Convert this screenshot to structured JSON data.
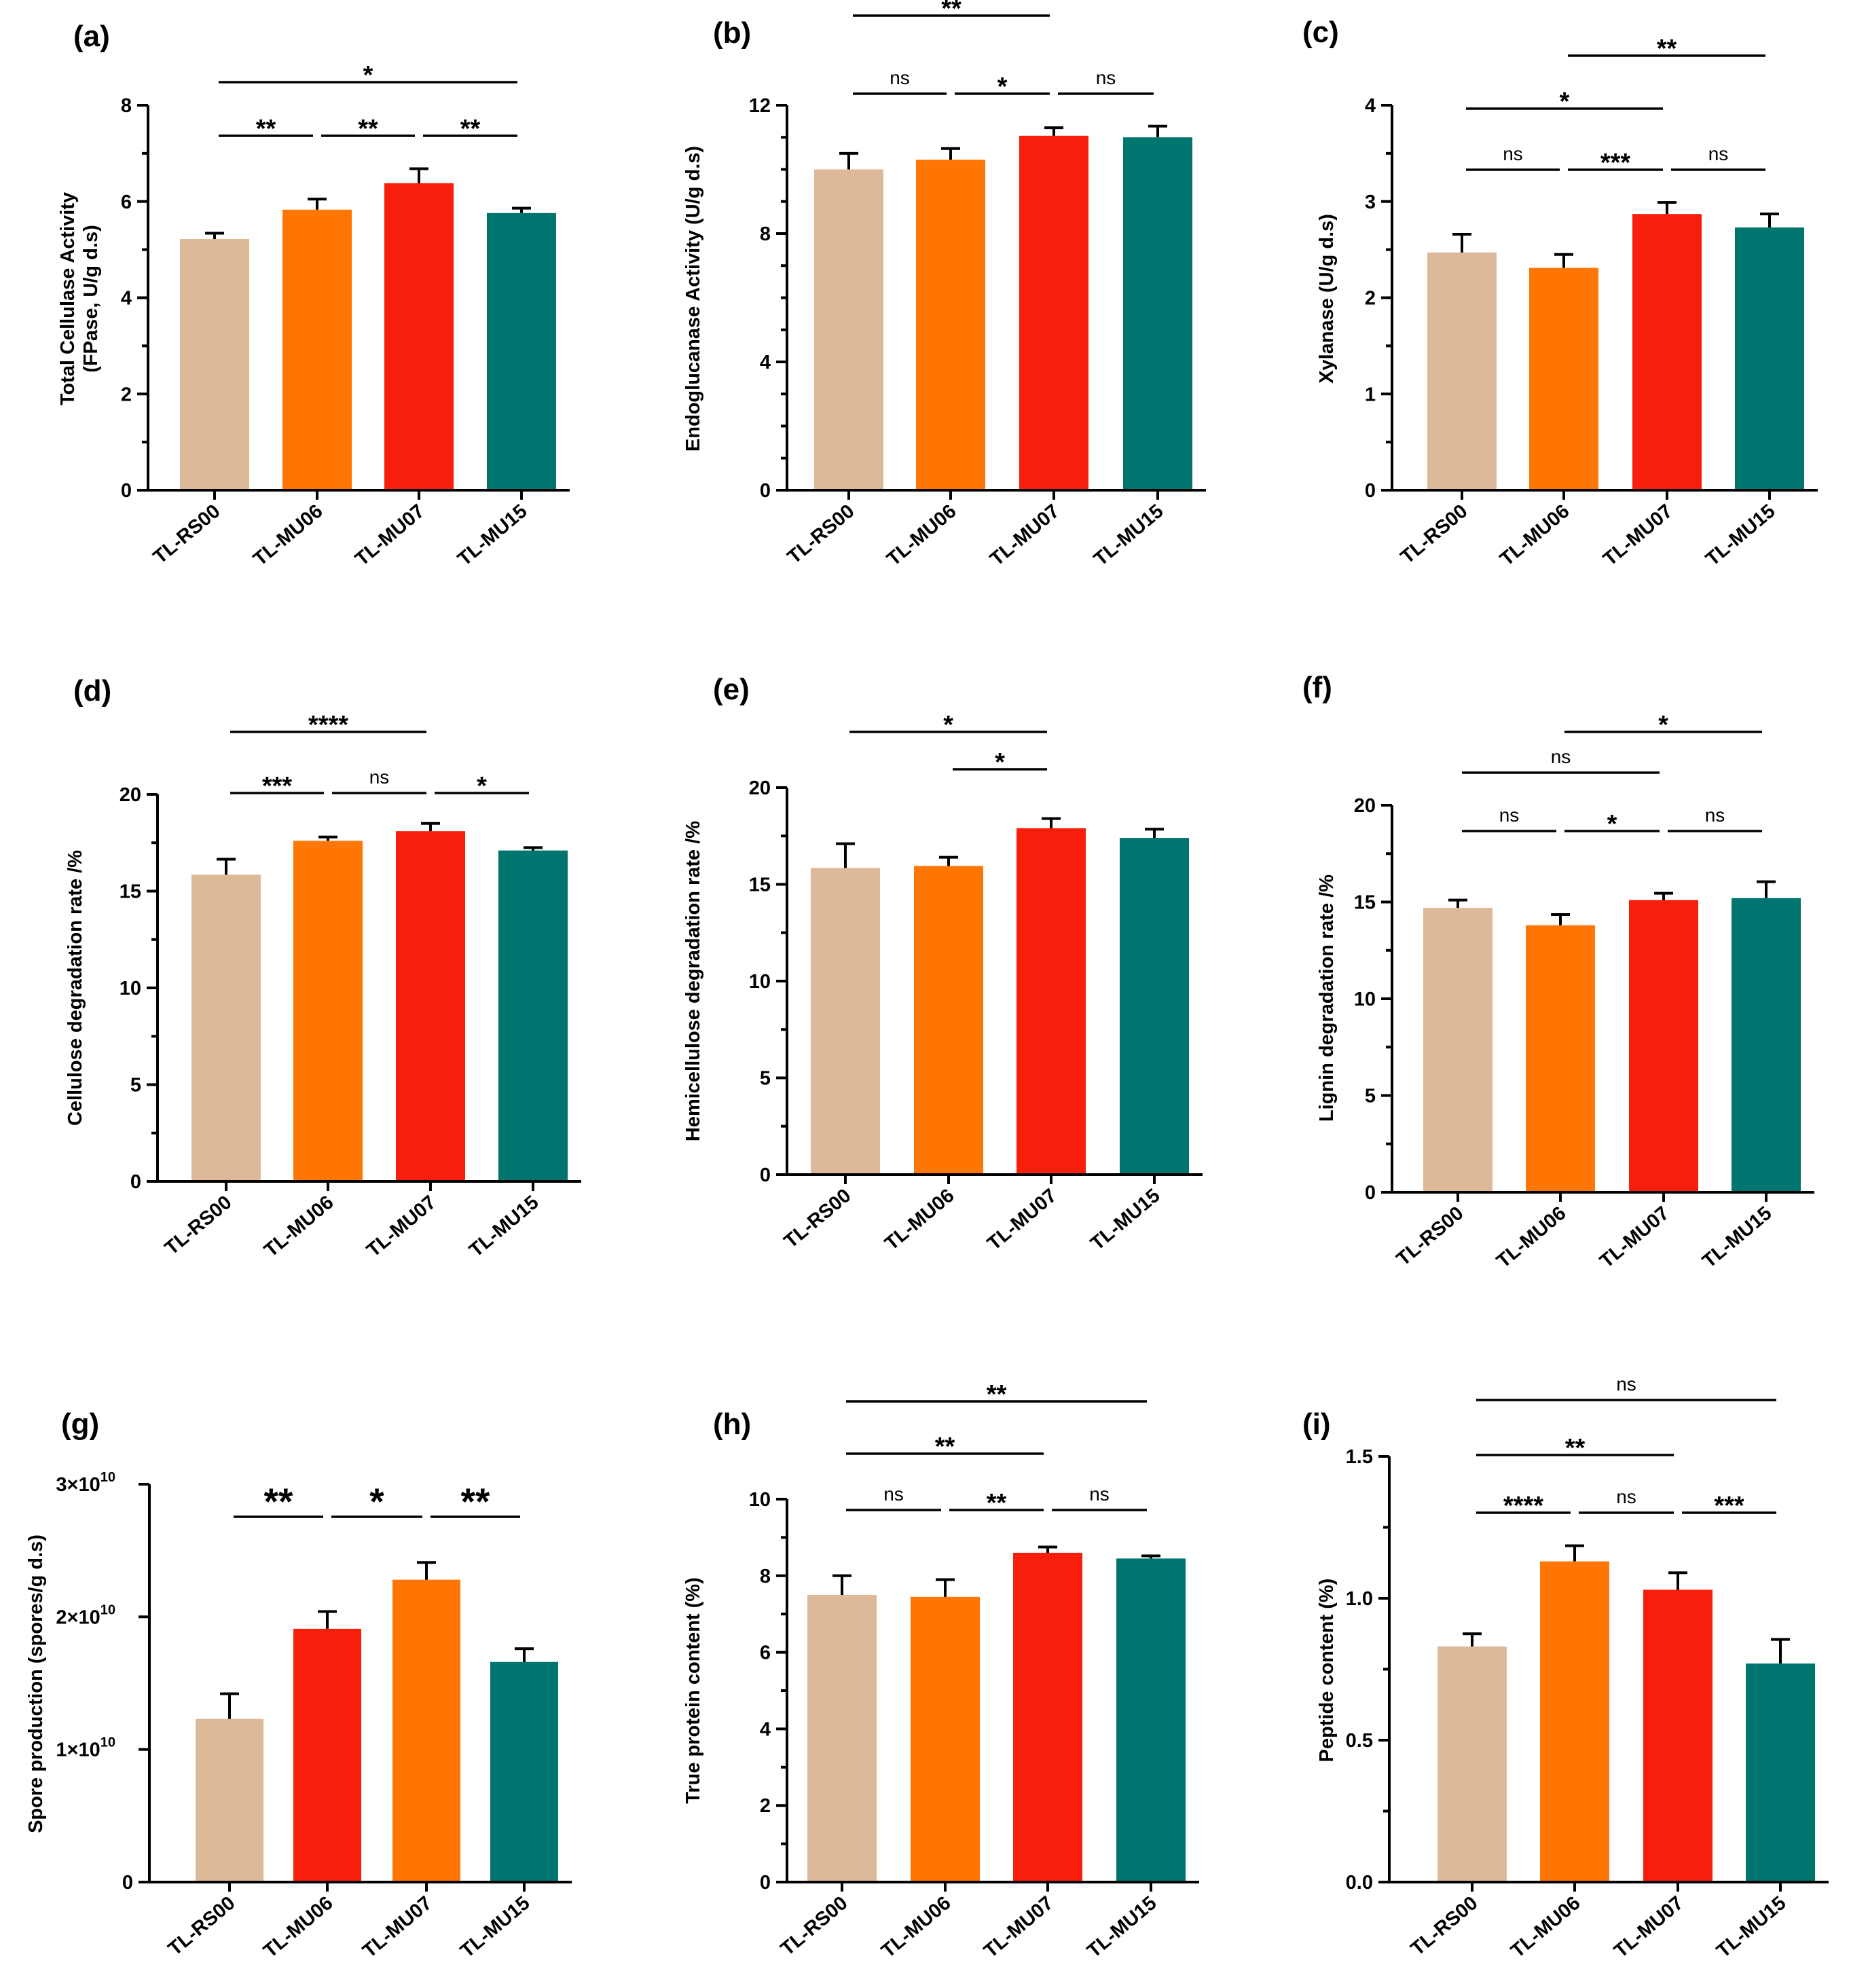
{
  "figure": {
    "colors": {
      "tan": "#DEB999",
      "orange": "#FF7605",
      "red": "#F81E0C",
      "teal": "#00746E"
    }
  },
  "chart_data": [
    {
      "panel": "(a)",
      "type": "bar",
      "ylabel": [
        "Total Cellulase Activity",
        "(FPase, U/g d.s)"
      ],
      "categories": [
        "TL-RS00",
        "TL-MU06",
        "TL-MU07",
        "TL-MU15"
      ],
      "values": [
        5.22,
        5.83,
        6.38,
        5.76
      ],
      "errors": [
        0.12,
        0.22,
        0.3,
        0.1
      ],
      "colors": [
        "tan",
        "orange",
        "red",
        "teal"
      ],
      "ylim": [
        0,
        8
      ],
      "ticks": [
        {
          "v": 0,
          "label": "0"
        },
        {
          "v": 2,
          "label": "2"
        },
        {
          "v": 4,
          "label": "4"
        },
        {
          "v": 6,
          "label": "6"
        },
        {
          "v": 8,
          "label": "8"
        }
      ],
      "minor_ticks": [
        1,
        3,
        5,
        7
      ],
      "brackets": [
        {
          "from": 0,
          "to": 1,
          "level": 0,
          "label": "**"
        },
        {
          "from": 1,
          "to": 2,
          "level": 0,
          "label": "**"
        },
        {
          "from": 2,
          "to": 3,
          "level": 0,
          "label": "**"
        },
        {
          "from": 0,
          "to": 3,
          "level": 1,
          "label": "*"
        }
      ]
    },
    {
      "panel": "(b)",
      "type": "bar",
      "ylabel": [
        "Endoglucanase Activity (U/g d.s)"
      ],
      "categories": [
        "TL-RS00",
        "TL-MU06",
        "TL-MU07",
        "TL-MU15"
      ],
      "values": [
        10.0,
        10.3,
        11.05,
        11.0
      ],
      "errors": [
        0.5,
        0.35,
        0.25,
        0.35
      ],
      "colors": [
        "tan",
        "orange",
        "red",
        "teal"
      ],
      "ylim": [
        0,
        12
      ],
      "ticks": [
        {
          "v": 0,
          "label": "0"
        },
        {
          "v": 4,
          "label": "4"
        },
        {
          "v": 8,
          "label": "8"
        },
        {
          "v": 12,
          "label": "12"
        }
      ],
      "minor_ticks": [
        1,
        2,
        3,
        5,
        6,
        7,
        9,
        10,
        11
      ],
      "brackets": [
        {
          "from": 0,
          "to": 1,
          "level": 0,
          "label": "ns"
        },
        {
          "from": 1,
          "to": 2,
          "level": 0,
          "label": "*"
        },
        {
          "from": 2,
          "to": 3,
          "level": 0,
          "label": "ns"
        },
        {
          "from": 0,
          "to": 2,
          "level": 1,
          "label": "**"
        }
      ]
    },
    {
      "panel": "(c)",
      "type": "bar",
      "ylabel": [
        "Xylanase (U/g d.s)"
      ],
      "categories": [
        "TL-RS00",
        "TL-MU06",
        "TL-MU07",
        "TL-MU15"
      ],
      "values": [
        2.47,
        2.31,
        2.87,
        2.73
      ],
      "errors": [
        0.19,
        0.14,
        0.12,
        0.14
      ],
      "colors": [
        "tan",
        "orange",
        "red",
        "teal"
      ],
      "ylim": [
        0,
        4
      ],
      "ticks": [
        {
          "v": 0,
          "label": "0"
        },
        {
          "v": 1,
          "label": "1"
        },
        {
          "v": 2,
          "label": "2"
        },
        {
          "v": 3,
          "label": "3"
        },
        {
          "v": 4,
          "label": "4"
        }
      ],
      "minor_ticks": [
        0.5,
        1.5,
        2.5,
        3.5
      ],
      "brackets": [
        {
          "from": 0,
          "to": 1,
          "level": 0,
          "label": "ns"
        },
        {
          "from": 1,
          "to": 2,
          "level": 0,
          "label": "***"
        },
        {
          "from": 2,
          "to": 3,
          "level": 0,
          "label": "ns"
        },
        {
          "from": 0,
          "to": 2,
          "level": 1,
          "label": "*"
        },
        {
          "from": 1,
          "to": 3,
          "level": 2,
          "label": "**"
        }
      ]
    },
    {
      "panel": "(d)",
      "type": "bar",
      "ylabel": [
        "Cellulose degradation rate /%"
      ],
      "categories": [
        "TL-RS00",
        "TL-MU06",
        "TL-MU07",
        "TL-MU15"
      ],
      "values": [
        15.85,
        17.6,
        18.1,
        17.1
      ],
      "errors": [
        0.8,
        0.2,
        0.4,
        0.15
      ],
      "colors": [
        "tan",
        "orange",
        "red",
        "teal"
      ],
      "ylim": [
        0,
        20
      ],
      "ticks": [
        {
          "v": 0,
          "label": "0"
        },
        {
          "v": 5,
          "label": "5"
        },
        {
          "v": 10,
          "label": "10"
        },
        {
          "v": 15,
          "label": "15"
        },
        {
          "v": 20,
          "label": "20"
        }
      ],
      "minor_ticks": [
        2.5,
        7.5,
        12.5,
        17.5
      ],
      "brackets": [
        {
          "from": 0,
          "to": 1,
          "level": 0,
          "label": "***"
        },
        {
          "from": 1,
          "to": 2,
          "level": 0,
          "label": "ns"
        },
        {
          "from": 2,
          "to": 3,
          "level": 0,
          "label": "*"
        },
        {
          "from": 0,
          "to": 2,
          "level": 1,
          "label": "****"
        }
      ]
    },
    {
      "panel": "(e)",
      "type": "bar",
      "ylabel": [
        "Hemicellulose degradation rate /%"
      ],
      "categories": [
        "TL-RS00",
        "TL-MU06",
        "TL-MU07",
        "TL-MU15"
      ],
      "values": [
        15.85,
        15.95,
        17.9,
        17.4
      ],
      "errors": [
        1.25,
        0.45,
        0.5,
        0.45
      ],
      "colors": [
        "tan",
        "orange",
        "red",
        "teal"
      ],
      "ylim": [
        0,
        20
      ],
      "ticks": [
        {
          "v": 0,
          "label": "0"
        },
        {
          "v": 5,
          "label": "5"
        },
        {
          "v": 10,
          "label": "10"
        },
        {
          "v": 15,
          "label": "15"
        },
        {
          "v": 20,
          "label": "20"
        }
      ],
      "minor_ticks": [
        2.5,
        7.5,
        12.5,
        17.5
      ],
      "brackets": [
        {
          "from": 1,
          "to": 2,
          "level": 0,
          "label": "*"
        },
        {
          "from": 0,
          "to": 2,
          "level": 1,
          "label": "*"
        }
      ]
    },
    {
      "panel": "(f)",
      "type": "bar",
      "ylabel": [
        "Lignin degradation rate /%"
      ],
      "categories": [
        "TL-RS00",
        "TL-MU06",
        "TL-MU07",
        "TL-MU15"
      ],
      "values": [
        14.7,
        13.8,
        15.1,
        15.2
      ],
      "errors": [
        0.4,
        0.55,
        0.35,
        0.85
      ],
      "colors": [
        "tan",
        "orange",
        "red",
        "teal"
      ],
      "ylim": [
        0,
        20
      ],
      "ticks": [
        {
          "v": 0,
          "label": "0"
        },
        {
          "v": 5,
          "label": "5"
        },
        {
          "v": 10,
          "label": "10"
        },
        {
          "v": 15,
          "label": "15"
        },
        {
          "v": 20,
          "label": "20"
        }
      ],
      "minor_ticks": [
        2.5,
        7.5,
        12.5,
        17.5
      ],
      "brackets": [
        {
          "from": 0,
          "to": 1,
          "level": 0,
          "label": "ns"
        },
        {
          "from": 1,
          "to": 2,
          "level": 0,
          "label": "*"
        },
        {
          "from": 2,
          "to": 3,
          "level": 0,
          "label": "ns"
        },
        {
          "from": 0,
          "to": 2,
          "level": 1,
          "label": "ns"
        },
        {
          "from": 1,
          "to": 3,
          "level": 2,
          "label": "*"
        }
      ]
    },
    {
      "panel": "(g)",
      "type": "bar",
      "ylabel": [
        "Spore production (spores/g d.s)"
      ],
      "categories": [
        "TL-RS00",
        "TL-MU06",
        "TL-MU07",
        "TL-MU15"
      ],
      "values": [
        12300000000.0,
        19100000000.0,
        22800000000.0,
        16600000000.0
      ],
      "errors": [
        1900000000.0,
        1300000000.0,
        1300000000.0,
        1000000000.0
      ],
      "colors": [
        "tan",
        "red",
        "orange",
        "teal"
      ],
      "ylim": [
        0,
        30000000000.0
      ],
      "ticks": [
        {
          "v": 0,
          "label": "0"
        },
        {
          "v": 10000000000.0,
          "label": "1×10",
          "sup": "10"
        },
        {
          "v": 20000000000.0,
          "label": "2×10",
          "sup": "10"
        },
        {
          "v": 30000000000.0,
          "label": "3×10",
          "sup": "10"
        }
      ],
      "minor_ticks": [],
      "brackets": [
        {
          "from": 0,
          "to": 1,
          "level": 0,
          "label": "**"
        },
        {
          "from": 1,
          "to": 2,
          "level": 0,
          "label": "*"
        },
        {
          "from": 2,
          "to": 3,
          "level": 0,
          "label": "**"
        }
      ]
    },
    {
      "panel": "(h)",
      "type": "bar",
      "ylabel": [
        "True protein content (%)"
      ],
      "categories": [
        "TL-RS00",
        "TL-MU06",
        "TL-MU07",
        "TL-MU15"
      ],
      "values": [
        7.5,
        7.45,
        8.6,
        8.45
      ],
      "errors": [
        0.5,
        0.45,
        0.15,
        0.07
      ],
      "colors": [
        "tan",
        "orange",
        "red",
        "teal"
      ],
      "ylim": [
        0,
        10
      ],
      "ticks": [
        {
          "v": 0,
          "label": "0"
        },
        {
          "v": 2,
          "label": "2"
        },
        {
          "v": 4,
          "label": "4"
        },
        {
          "v": 6,
          "label": "6"
        },
        {
          "v": 8,
          "label": "8"
        },
        {
          "v": 10,
          "label": "10"
        }
      ],
      "minor_ticks": [
        1,
        3,
        5,
        7,
        9
      ],
      "brackets": [
        {
          "from": 0,
          "to": 1,
          "level": 0,
          "label": "ns"
        },
        {
          "from": 1,
          "to": 2,
          "level": 0,
          "label": "**"
        },
        {
          "from": 2,
          "to": 3,
          "level": 0,
          "label": "ns"
        },
        {
          "from": 0,
          "to": 2,
          "level": 1,
          "label": "**"
        },
        {
          "from": 0,
          "to": 3,
          "level": 2,
          "label": "**"
        }
      ]
    },
    {
      "panel": "(i)",
      "type": "bar",
      "ylabel": [
        "Peptide content (%)"
      ],
      "categories": [
        "TL-RS00",
        "TL-MU06",
        "TL-MU07",
        "TL-MU15"
      ],
      "values": [
        0.83,
        1.13,
        1.03,
        0.77
      ],
      "errors": [
        0.045,
        0.055,
        0.06,
        0.085
      ],
      "colors": [
        "tan",
        "orange",
        "red",
        "teal"
      ],
      "ylim": [
        0,
        1.5
      ],
      "ticks": [
        {
          "v": 0,
          "label": "0.0"
        },
        {
          "v": 0.5,
          "label": "0.5"
        },
        {
          "v": 1.0,
          "label": "1.0"
        },
        {
          "v": 1.5,
          "label": "1.5"
        }
      ],
      "minor_ticks": [
        0.25,
        0.75,
        1.25
      ],
      "brackets": [
        {
          "from": 0,
          "to": 1,
          "level": 0,
          "label": "****"
        },
        {
          "from": 1,
          "to": 2,
          "level": 0,
          "label": "ns"
        },
        {
          "from": 2,
          "to": 3,
          "level": 0,
          "label": "***"
        },
        {
          "from": 0,
          "to": 2,
          "level": 1,
          "label": "**"
        },
        {
          "from": 0,
          "to": 3,
          "level": 2,
          "label": "ns"
        }
      ]
    }
  ]
}
